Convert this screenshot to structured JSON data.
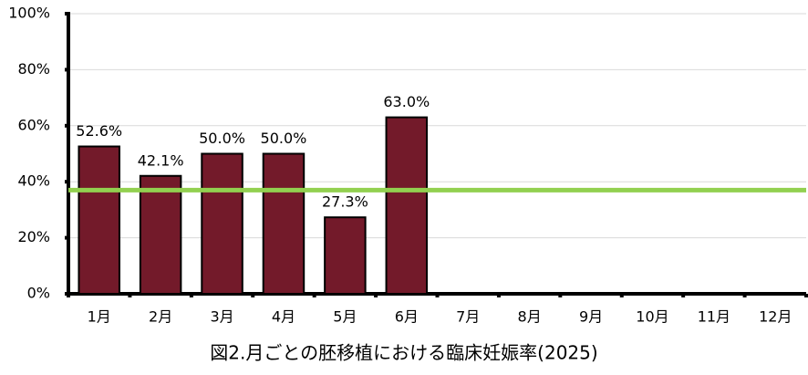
{
  "chart_data": {
    "type": "bar",
    "title": "図2.月ごとの胚移植における臨床妊娠率(2025)",
    "categories": [
      "1月",
      "2月",
      "3月",
      "4月",
      "5月",
      "6月",
      "7月",
      "8月",
      "9月",
      "10月",
      "11月",
      "12月"
    ],
    "values": [
      52.6,
      42.1,
      50.0,
      50.0,
      27.3,
      63.0,
      null,
      null,
      null,
      null,
      null,
      null
    ],
    "value_labels": [
      "52.6%",
      "42.1%",
      "50.0%",
      "50.0%",
      "27.3%",
      "63.0%",
      null,
      null,
      null,
      null,
      null,
      null
    ],
    "color": "#731a2a",
    "reference_line": 37,
    "reference_color": "#92d050",
    "ylim": [
      0,
      100
    ],
    "yticks": [
      {
        "value": 0,
        "label": "0%"
      },
      {
        "value": 20,
        "label": "20%"
      },
      {
        "value": 40,
        "label": "40%"
      },
      {
        "value": 60,
        "label": "60%"
      },
      {
        "value": 80,
        "label": "80%"
      },
      {
        "value": 100,
        "label": "100%"
      }
    ],
    "grid": true
  }
}
